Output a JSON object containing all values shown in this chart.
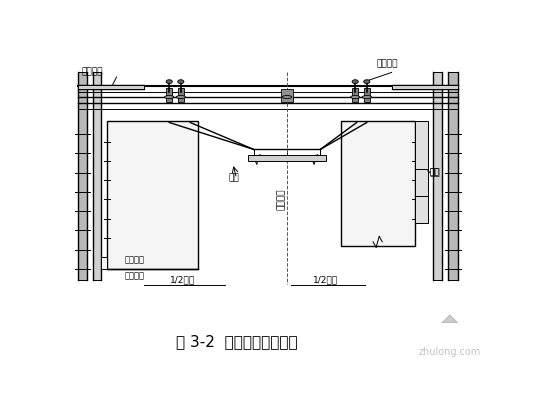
{
  "bg_color": "#ffffff",
  "line_color": "#000000",
  "title": "图 3-2  圆端形翻模总装图",
  "title_fontsize": 11,
  "label_zuoye_pingtai": "作业平台",
  "label_tijian_xitong": "提升系统",
  "label_dijia": "吸架",
  "label_mupan": "模板",
  "label_chengxin": "束心中线",
  "label_chentai_dingmian": "沉台顶面",
  "label_half_bottom": "1/2底底",
  "label_half_top": "1/2底顶",
  "watermark_text": "zhulong.com"
}
